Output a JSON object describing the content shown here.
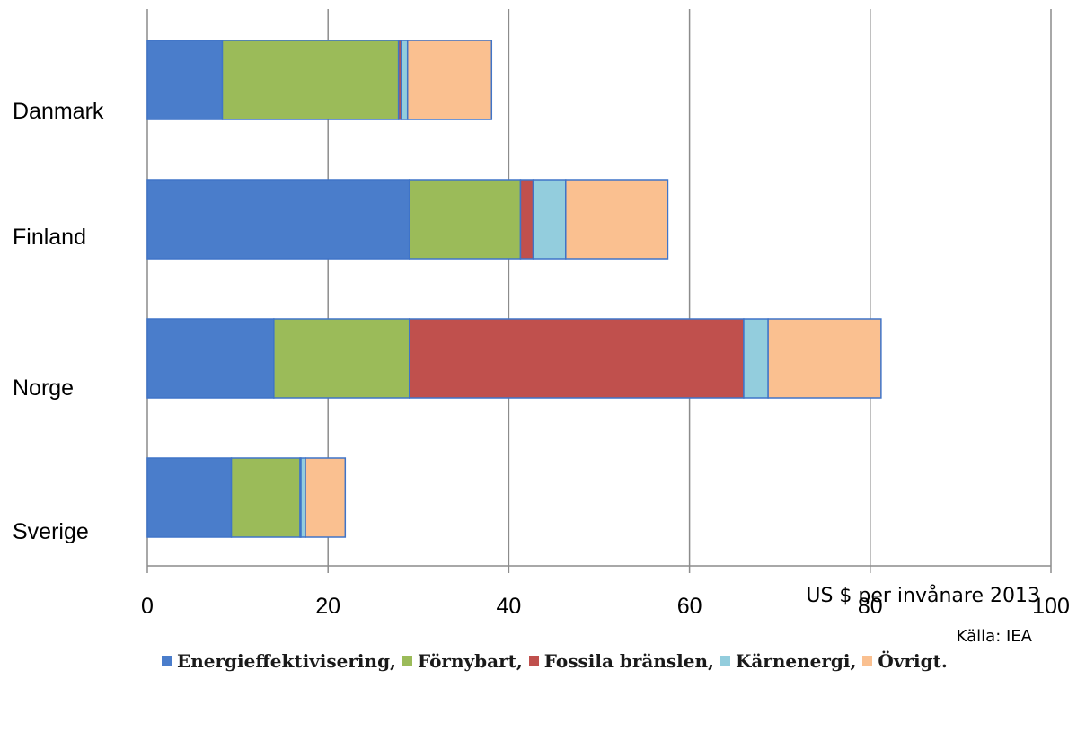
{
  "chart_data": {
    "type": "bar",
    "orientation": "horizontal",
    "stacked": true,
    "categories": [
      "Danmark",
      "Finland",
      "Norge",
      "Sverige"
    ],
    "series": [
      {
        "name": "Energieffektivisering",
        "color": "#4A7DCB",
        "values": [
          8.3,
          29,
          14,
          9.3
        ]
      },
      {
        "name": "Förnybart",
        "color": "#9BBB59",
        "values": [
          19.5,
          12.3,
          15,
          7.6
        ]
      },
      {
        "name": "Fossila bränslen",
        "color": "#C0504D",
        "values": [
          0.3,
          1.4,
          37,
          0.1
        ]
      },
      {
        "name": "Kärnenergi",
        "color": "#93CDDD",
        "values": [
          0.7,
          3.6,
          2.7,
          0.5
        ]
      },
      {
        "name": "Övrigt",
        "color": "#FAC090",
        "values": [
          9.3,
          11.3,
          12.5,
          4.4
        ]
      }
    ],
    "xticks": [
      "0",
      "20",
      "40",
      "60",
      "80",
      "100"
    ],
    "xlim": [
      0,
      100
    ],
    "xlabel": "US $ per invånare 2013",
    "source": "Källa: IEA",
    "grid": "vertical",
    "legend_position": "bottom"
  }
}
